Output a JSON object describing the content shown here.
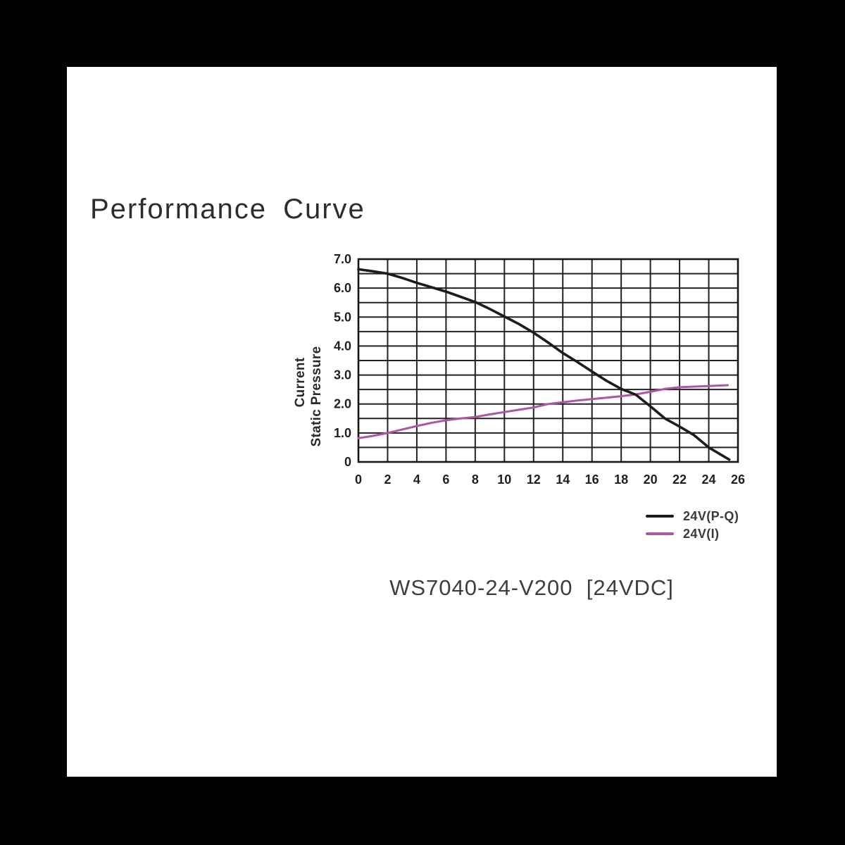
{
  "page": {
    "caption": "WS7040-24-V200  [24VDC]"
  },
  "colors": {
    "outer_background": "#000000",
    "sheet_background": "#ffffff",
    "grid_line": "#222222",
    "plot_border": "#161616",
    "pq_curve": "#1c1c1c",
    "current_curve": "#ab57a2",
    "text": "#2d2d2d"
  },
  "chart_data": {
    "type": "line",
    "title": "Performance Curve",
    "xlabel": "",
    "ylabel_lines": [
      "Current",
      "Static Pressure"
    ],
    "xlim": [
      0,
      26
    ],
    "ylim": [
      0,
      7
    ],
    "x_grid_step": 2,
    "y_grid_step": 0.5,
    "grid": "on",
    "legend_position": "below-right",
    "x_ticks": [
      0,
      2,
      4,
      6,
      8,
      10,
      12,
      14,
      16,
      18,
      20,
      22,
      24,
      26
    ],
    "y_ticks": [
      [
        0,
        "0"
      ],
      [
        1,
        "1.0"
      ],
      [
        2,
        "2.0"
      ],
      [
        3,
        "3.0"
      ],
      [
        4,
        "4.0"
      ],
      [
        5,
        "5.0"
      ],
      [
        6,
        "6.0"
      ],
      [
        7,
        "7.0"
      ]
    ],
    "series": [
      {
        "id": "pq-curve",
        "name": "24V(P-Q)",
        "color": "#1c1c1c",
        "width": 3.6,
        "points": [
          [
            0,
            6.65
          ],
          [
            1,
            6.58
          ],
          [
            2,
            6.5
          ],
          [
            3,
            6.35
          ],
          [
            4,
            6.18
          ],
          [
            5,
            6.03
          ],
          [
            6,
            5.88
          ],
          [
            7,
            5.7
          ],
          [
            8,
            5.52
          ],
          [
            9,
            5.28
          ],
          [
            10,
            5.02
          ],
          [
            11,
            4.76
          ],
          [
            12,
            4.46
          ],
          [
            13,
            4.12
          ],
          [
            14,
            3.76
          ],
          [
            15,
            3.45
          ],
          [
            16,
            3.12
          ],
          [
            17,
            2.8
          ],
          [
            18,
            2.52
          ],
          [
            19,
            2.32
          ],
          [
            20,
            1.92
          ],
          [
            21,
            1.5
          ],
          [
            22,
            1.22
          ],
          [
            23,
            0.92
          ],
          [
            24,
            0.5
          ],
          [
            25,
            0.2
          ],
          [
            25.4,
            0.08
          ]
        ]
      },
      {
        "id": "current-curve",
        "name": "24V(I)",
        "color": "#ab57a2",
        "width": 3,
        "points": [
          [
            0,
            0.82
          ],
          [
            1,
            0.9
          ],
          [
            2,
            1.0
          ],
          [
            3,
            1.12
          ],
          [
            4,
            1.24
          ],
          [
            5,
            1.35
          ],
          [
            6,
            1.44
          ],
          [
            7,
            1.5
          ],
          [
            8,
            1.55
          ],
          [
            9,
            1.64
          ],
          [
            10,
            1.72
          ],
          [
            11,
            1.8
          ],
          [
            12,
            1.88
          ],
          [
            13,
            2.0
          ],
          [
            14,
            2.06
          ],
          [
            15,
            2.12
          ],
          [
            16,
            2.17
          ],
          [
            17,
            2.22
          ],
          [
            18,
            2.27
          ],
          [
            19,
            2.33
          ],
          [
            20,
            2.42
          ],
          [
            21,
            2.52
          ],
          [
            22,
            2.58
          ],
          [
            23,
            2.6
          ],
          [
            24,
            2.62
          ],
          [
            25.3,
            2.65
          ]
        ]
      }
    ]
  }
}
